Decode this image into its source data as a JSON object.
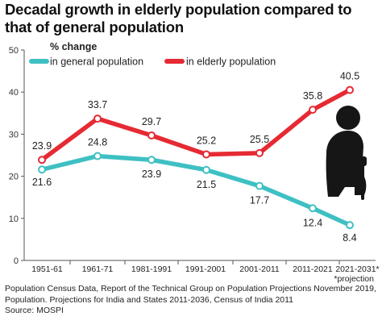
{
  "chart_data": {
    "type": "line",
    "title": "Decadal growth in elderly population compared to that of general population",
    "ylabel": "% change",
    "ylim": [
      0,
      50
    ],
    "yticks": [
      0,
      10,
      20,
      30,
      40,
      50
    ],
    "categories": [
      "1951-61",
      "1961-71",
      "1981-1991",
      "1991-2001",
      "2001-2011",
      "2011-2021",
      "2021-2031*"
    ],
    "series": [
      {
        "name": "in general population",
        "color": "#3ec0c3",
        "values": [
          21.6,
          24.8,
          23.9,
          21.5,
          17.7,
          12.4,
          8.4
        ],
        "labels": [
          "21.6",
          "24.8",
          "23.9",
          "21.5",
          "17.7",
          "12.4",
          "8.4"
        ]
      },
      {
        "name": "in elderly population",
        "color": "#e52a33",
        "values": [
          23.9,
          33.7,
          29.7,
          25.2,
          25.5,
          35.8,
          40.5
        ],
        "labels": [
          "23.9",
          "33.7",
          "29.7",
          "25.2",
          "25.5",
          "35.8",
          "40.5"
        ]
      }
    ],
    "legend_position": "top-left",
    "grid": false,
    "footnote": "*projection",
    "illustration_icon": "elderly-person-with-cane-icon"
  },
  "source_text": "Population Census Data, Report of the Technical Group on Population Projections November 2019, Population. Projections for India and States 2011-2036, Census of India 2011",
  "source_credit": "Source: MOSPI"
}
